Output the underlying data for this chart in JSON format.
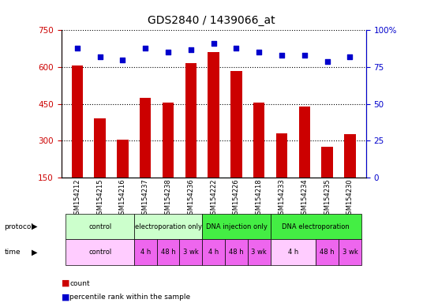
{
  "title": "GDS2840 / 1439066_at",
  "samples": [
    "GSM154212",
    "GSM154215",
    "GSM154216",
    "GSM154237",
    "GSM154238",
    "GSM154236",
    "GSM154222",
    "GSM154226",
    "GSM154218",
    "GSM154233",
    "GSM154234",
    "GSM154235",
    "GSM154230"
  ],
  "counts": [
    605,
    390,
    305,
    475,
    455,
    615,
    660,
    585,
    455,
    330,
    440,
    275,
    325
  ],
  "percentile_ranks": [
    88,
    82,
    80,
    88,
    85,
    87,
    91,
    88,
    85,
    83,
    83,
    79,
    82
  ],
  "ylim_left": [
    150,
    750
  ],
  "ylim_right": [
    0,
    100
  ],
  "yticks_left": [
    150,
    300,
    450,
    600,
    750
  ],
  "yticks_right": [
    0,
    25,
    50,
    75,
    100
  ],
  "bar_color": "#cc0000",
  "dot_color": "#0000cc",
  "grid_color": "#000000",
  "background_color": "#ffffff",
  "protocol_row": {
    "groups": [
      {
        "label": "control",
        "span": [
          0,
          3
        ],
        "color": "#ccffcc"
      },
      {
        "label": "electroporation only",
        "span": [
          3,
          6
        ],
        "color": "#ccffcc"
      },
      {
        "label": "DNA injection only",
        "span": [
          6,
          9
        ],
        "color": "#44ee44"
      },
      {
        "label": "DNA electroporation",
        "span": [
          9,
          13
        ],
        "color": "#44ee44"
      }
    ]
  },
  "time_row": {
    "groups": [
      {
        "label": "control",
        "span": [
          0,
          3
        ],
        "color": "#ffccff"
      },
      {
        "label": "4 h",
        "span": [
          3,
          4
        ],
        "color": "#ee66ee"
      },
      {
        "label": "48 h",
        "span": [
          4,
          5
        ],
        "color": "#ee66ee"
      },
      {
        "label": "3 wk",
        "span": [
          5,
          6
        ],
        "color": "#ee66ee"
      },
      {
        "label": "4 h",
        "span": [
          6,
          7
        ],
        "color": "#ee66ee"
      },
      {
        "label": "48 h",
        "span": [
          7,
          8
        ],
        "color": "#ee66ee"
      },
      {
        "label": "3 wk",
        "span": [
          8,
          9
        ],
        "color": "#ee66ee"
      },
      {
        "label": "4 h",
        "span": [
          9,
          11
        ],
        "color": "#ffccff"
      },
      {
        "label": "48 h",
        "span": [
          11,
          12
        ],
        "color": "#ee66ee"
      },
      {
        "label": "3 wk",
        "span": [
          12,
          13
        ],
        "color": "#ee66ee"
      }
    ]
  },
  "title_fontsize": 10,
  "tick_fontsize": 7.5,
  "bar_width": 0.5
}
